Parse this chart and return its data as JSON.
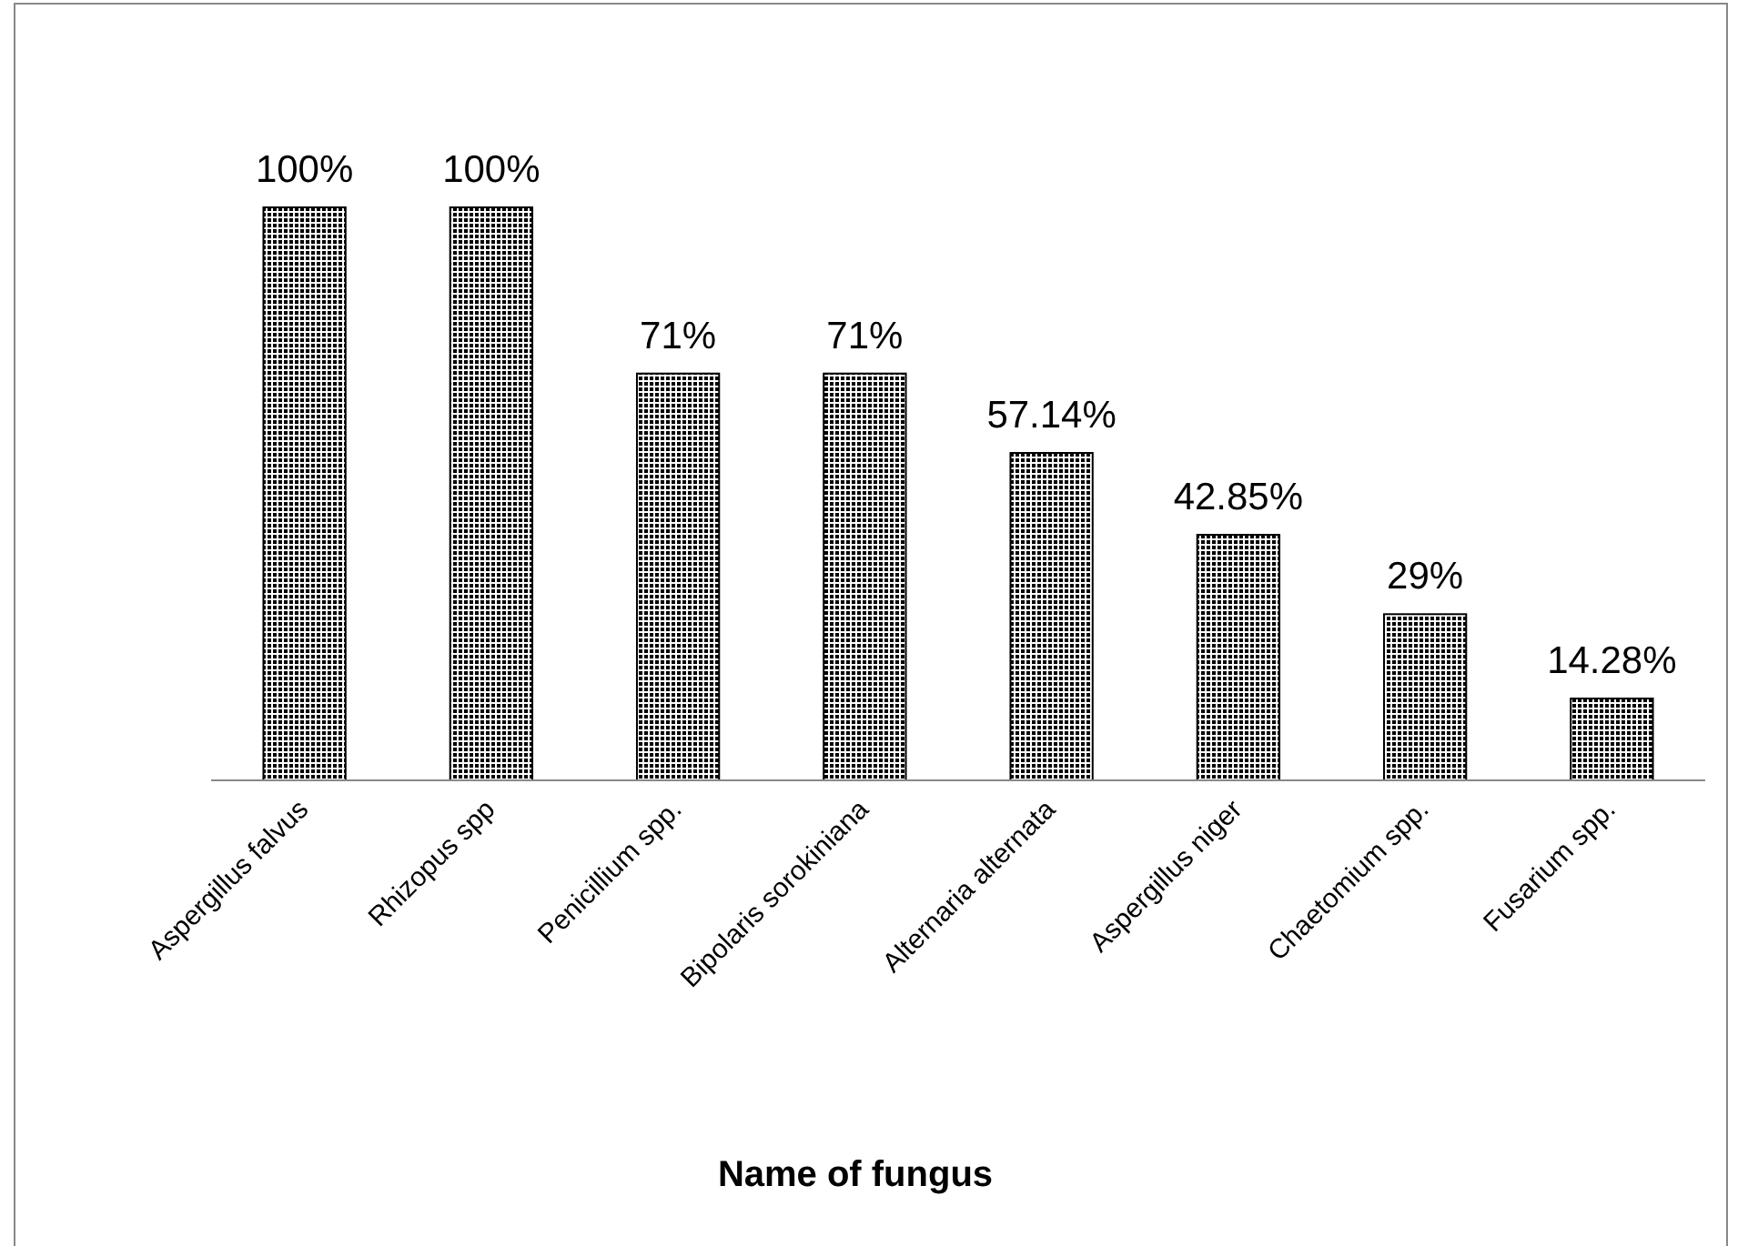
{
  "chart_data": {
    "type": "bar",
    "xlabel": "Name of fungus",
    "categories": [
      "Aspergillus falvus",
      "Rhizopus spp",
      "Penicillium spp.",
      "Bipolaris sorokiniana",
      "Alternaria alternata",
      "Aspergillus niger",
      "Chaetomium spp.",
      "Fusarium spp."
    ],
    "values": [
      100,
      100,
      71,
      71,
      57.14,
      42.85,
      29,
      14.28
    ],
    "value_labels": [
      "100%",
      "100%",
      "71%",
      "71%",
      "57.14%",
      "42.85%",
      "29%",
      "14.28%"
    ],
    "color": "#000000"
  }
}
